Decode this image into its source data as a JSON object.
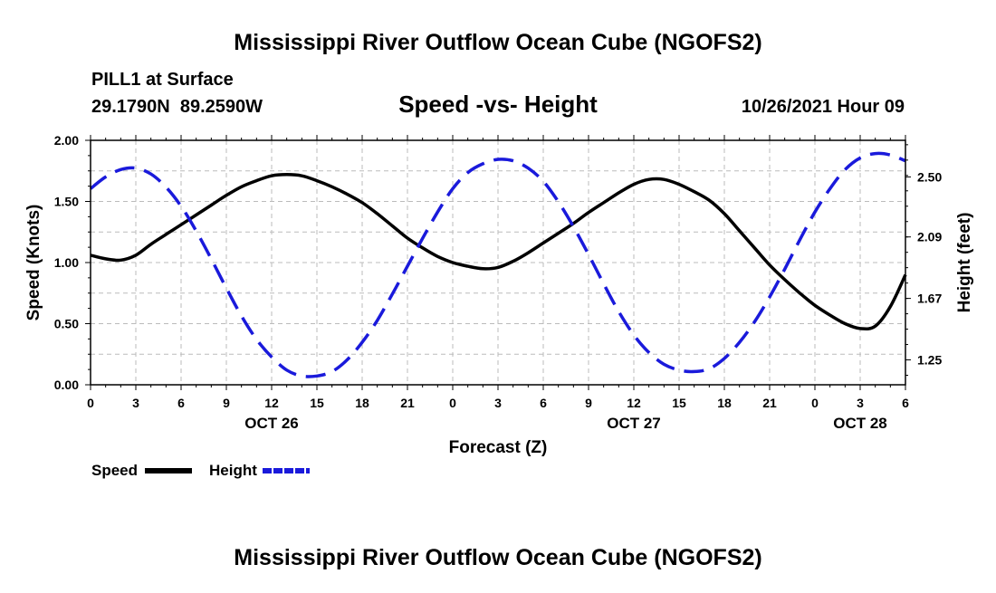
{
  "page": {
    "title": "Mississippi River Outflow Ocean Cube (NGOFS2)",
    "footer_title": "Mississippi River Outflow Ocean Cube (NGOFS2)",
    "station": "PILL1 at Surface",
    "coords": "29.1790N  89.2590W",
    "datetime": "10/26/2021 Hour 09"
  },
  "colors": {
    "speed": "#000000",
    "height": "#1a1adb",
    "grid": "#bbbbbb"
  },
  "chart_data": {
    "type": "line",
    "title": "Speed -vs- Height",
    "xlabel": "Forecast (Z)",
    "ylabel": "Speed (Knots)",
    "y2label": "Height (feet)",
    "x_range_hours": [
      0,
      54
    ],
    "ylim": [
      0,
      2.0
    ],
    "y2lim": [
      1.08,
      2.75
    ],
    "xticks": [
      {
        "h": 0,
        "label": "0"
      },
      {
        "h": 3,
        "label": "3"
      },
      {
        "h": 6,
        "label": "6"
      },
      {
        "h": 9,
        "label": "9"
      },
      {
        "h": 12,
        "label": "12"
      },
      {
        "h": 15,
        "label": "15"
      },
      {
        "h": 18,
        "label": "18"
      },
      {
        "h": 21,
        "label": "21"
      },
      {
        "h": 24,
        "label": "0"
      },
      {
        "h": 27,
        "label": "3"
      },
      {
        "h": 30,
        "label": "6"
      },
      {
        "h": 33,
        "label": "9"
      },
      {
        "h": 36,
        "label": "12"
      },
      {
        "h": 39,
        "label": "15"
      },
      {
        "h": 42,
        "label": "18"
      },
      {
        "h": 45,
        "label": "21"
      },
      {
        "h": 48,
        "label": "0"
      },
      {
        "h": 51,
        "label": "3"
      },
      {
        "h": 54,
        "label": "6"
      }
    ],
    "date_labels": [
      {
        "h": 12,
        "label": "OCT 26"
      },
      {
        "h": 36,
        "label": "OCT 27"
      },
      {
        "h": 51,
        "label": "OCT 28"
      }
    ],
    "yticks": [
      {
        "v": 0,
        "label": "0.00"
      },
      {
        "v": 0.5,
        "label": "0.50"
      },
      {
        "v": 1.0,
        "label": "1.00"
      },
      {
        "v": 1.5,
        "label": "1.50"
      },
      {
        "v": 2.0,
        "label": "2.00"
      }
    ],
    "y2ticks": [
      {
        "v": 1.25,
        "label": "1.25"
      },
      {
        "v": 1.67,
        "label": "1.67"
      },
      {
        "v": 2.09,
        "label": "2.09"
      },
      {
        "v": 2.5,
        "label": "2.50"
      }
    ],
    "series": [
      {
        "name": "Speed",
        "axis": "left",
        "style": "solid",
        "points": [
          [
            0,
            1.06
          ],
          [
            1,
            1.03
          ],
          [
            2,
            1.02
          ],
          [
            3,
            1.06
          ],
          [
            4,
            1.15
          ],
          [
            5,
            1.23
          ],
          [
            6,
            1.31
          ],
          [
            7,
            1.39
          ],
          [
            8,
            1.47
          ],
          [
            9,
            1.55
          ],
          [
            10,
            1.62
          ],
          [
            11,
            1.67
          ],
          [
            12,
            1.71
          ],
          [
            13,
            1.72
          ],
          [
            14,
            1.71
          ],
          [
            15,
            1.67
          ],
          [
            16,
            1.62
          ],
          [
            17,
            1.56
          ],
          [
            18,
            1.49
          ],
          [
            19,
            1.4
          ],
          [
            20,
            1.3
          ],
          [
            21,
            1.2
          ],
          [
            22,
            1.12
          ],
          [
            23,
            1.05
          ],
          [
            24,
            1.0
          ],
          [
            25,
            0.97
          ],
          [
            26,
            0.95
          ],
          [
            27,
            0.96
          ],
          [
            28,
            1.01
          ],
          [
            29,
            1.08
          ],
          [
            30,
            1.16
          ],
          [
            31,
            1.24
          ],
          [
            32,
            1.32
          ],
          [
            33,
            1.41
          ],
          [
            34,
            1.49
          ],
          [
            35,
            1.57
          ],
          [
            36,
            1.64
          ],
          [
            37,
            1.68
          ],
          [
            38,
            1.68
          ],
          [
            39,
            1.64
          ],
          [
            40,
            1.58
          ],
          [
            41,
            1.51
          ],
          [
            42,
            1.4
          ],
          [
            43,
            1.26
          ],
          [
            44,
            1.12
          ],
          [
            45,
            0.98
          ],
          [
            46,
            0.86
          ],
          [
            47,
            0.75
          ],
          [
            48,
            0.65
          ],
          [
            49,
            0.57
          ],
          [
            50,
            0.5
          ],
          [
            51,
            0.46
          ],
          [
            52,
            0.48
          ],
          [
            53,
            0.64
          ],
          [
            54,
            0.9
          ]
        ]
      },
      {
        "name": "Height",
        "axis": "right",
        "style": "dashed",
        "points": [
          [
            0,
            2.42
          ],
          [
            1,
            2.5
          ],
          [
            2,
            2.55
          ],
          [
            3,
            2.56
          ],
          [
            4,
            2.52
          ],
          [
            5,
            2.43
          ],
          [
            6,
            2.3
          ],
          [
            7,
            2.13
          ],
          [
            8,
            1.94
          ],
          [
            9,
            1.74
          ],
          [
            10,
            1.55
          ],
          [
            11,
            1.39
          ],
          [
            12,
            1.27
          ],
          [
            13,
            1.18
          ],
          [
            14,
            1.14
          ],
          [
            15,
            1.14
          ],
          [
            16,
            1.17
          ],
          [
            17,
            1.25
          ],
          [
            18,
            1.37
          ],
          [
            19,
            1.52
          ],
          [
            20,
            1.7
          ],
          [
            21,
            1.89
          ],
          [
            22,
            2.08
          ],
          [
            23,
            2.26
          ],
          [
            24,
            2.42
          ],
          [
            25,
            2.53
          ],
          [
            26,
            2.59
          ],
          [
            27,
            2.62
          ],
          [
            28,
            2.61
          ],
          [
            29,
            2.56
          ],
          [
            30,
            2.47
          ],
          [
            31,
            2.33
          ],
          [
            32,
            2.16
          ],
          [
            33,
            1.97
          ],
          [
            34,
            1.77
          ],
          [
            35,
            1.58
          ],
          [
            36,
            1.42
          ],
          [
            37,
            1.3
          ],
          [
            38,
            1.22
          ],
          [
            39,
            1.18
          ],
          [
            40,
            1.17
          ],
          [
            41,
            1.19
          ],
          [
            42,
            1.26
          ],
          [
            43,
            1.37
          ],
          [
            44,
            1.51
          ],
          [
            45,
            1.68
          ],
          [
            46,
            1.87
          ],
          [
            47,
            2.07
          ],
          [
            48,
            2.26
          ],
          [
            49,
            2.42
          ],
          [
            50,
            2.55
          ],
          [
            51,
            2.63
          ],
          [
            52,
            2.66
          ],
          [
            53,
            2.65
          ],
          [
            54,
            2.61
          ]
        ]
      }
    ],
    "legend": [
      {
        "label": "Speed",
        "series": "Speed"
      },
      {
        "label": "Height",
        "series": "Height"
      }
    ]
  }
}
